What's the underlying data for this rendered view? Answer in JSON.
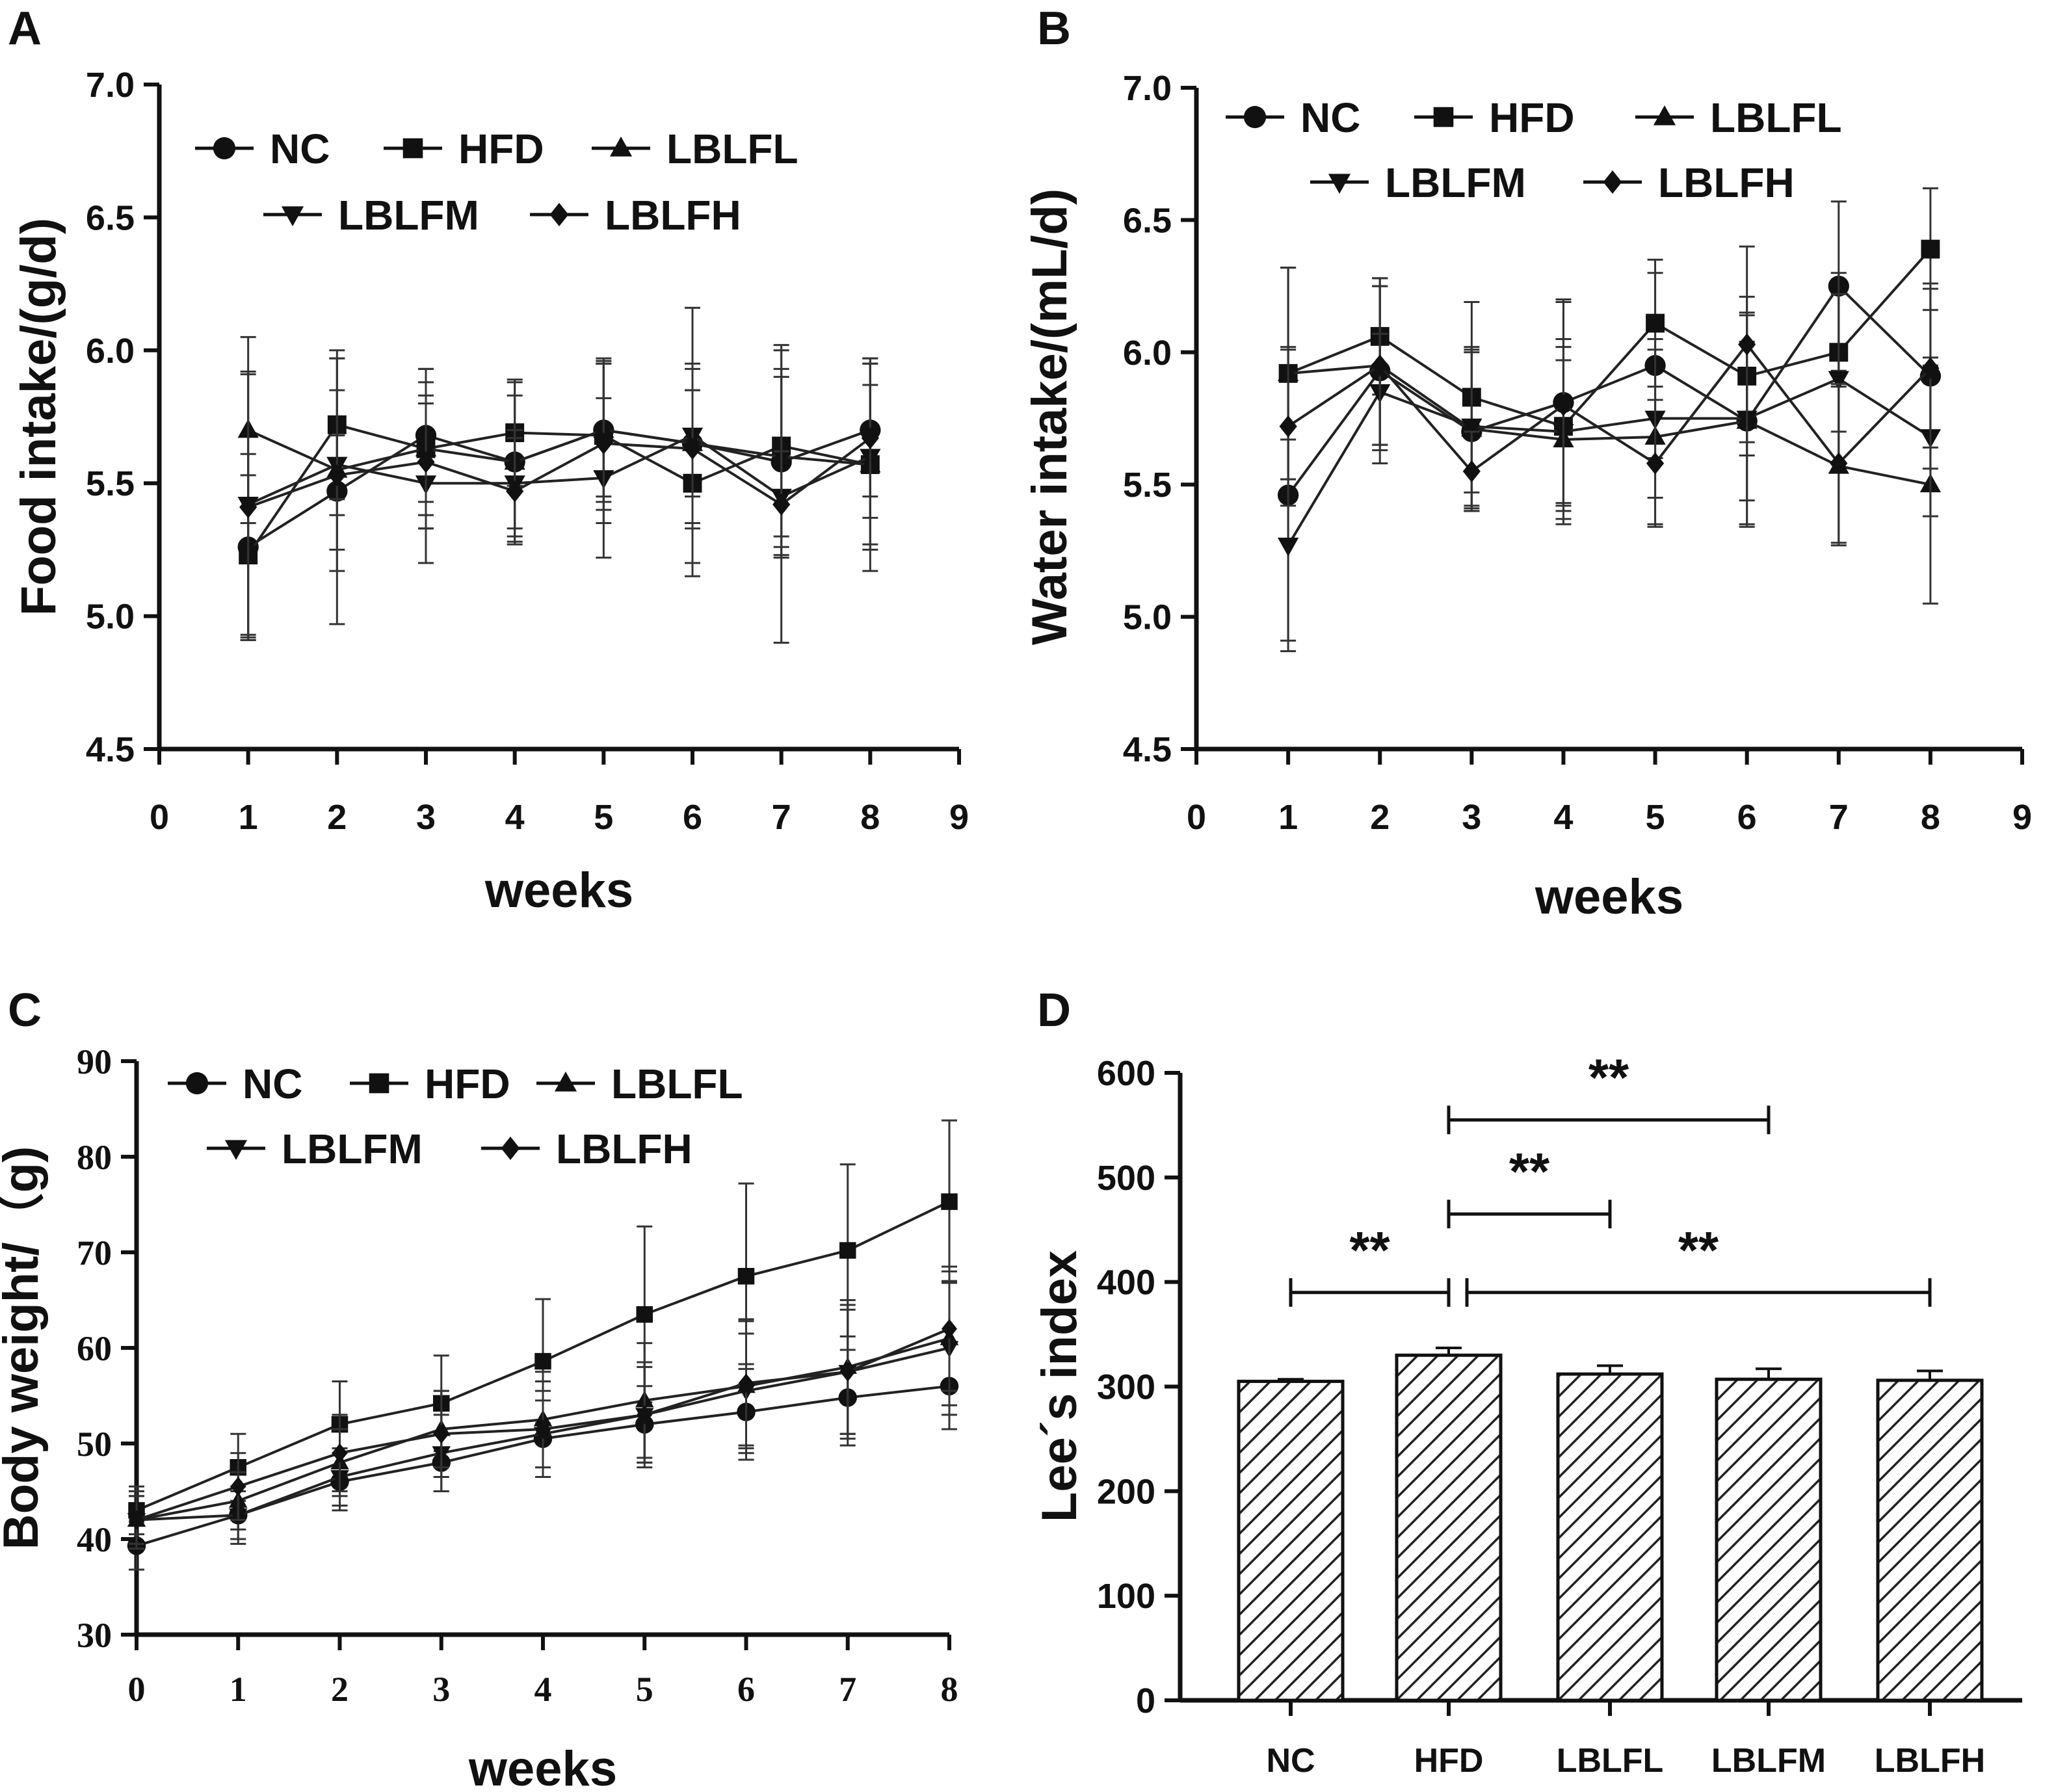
{
  "chart_data": [
    {
      "id": "A",
      "panel_label": "A",
      "type": "line",
      "xlabel": "weeks",
      "ylabel": "Food intake/(g/d)",
      "xlim": [
        0,
        9
      ],
      "ylim": [
        4.5,
        7.0
      ],
      "xticks": [
        0,
        1,
        2,
        3,
        4,
        5,
        6,
        7,
        8,
        9
      ],
      "yticks": [
        "4.5",
        "5.0",
        "5.5",
        "6.0",
        "6.5",
        "7.0"
      ],
      "x": [
        1,
        2,
        3,
        4,
        5,
        6,
        7,
        8
      ],
      "legend_rows": [
        [
          "NC",
          "HFD",
          "LBLFL"
        ],
        [
          "LBLFM",
          "LBLFH"
        ]
      ],
      "series": [
        {
          "name": "NC",
          "marker": "circle",
          "values": [
            5.26,
            5.47,
            5.68,
            5.58,
            5.7,
            5.65,
            5.58,
            5.7
          ],
          "errors": [
            0.35,
            0.5,
            0.25,
            0.3,
            0.27,
            0.2,
            0.35,
            0.25
          ]
        },
        {
          "name": "HFD",
          "marker": "square",
          "values": [
            5.23,
            5.72,
            5.63,
            5.69,
            5.68,
            5.5,
            5.64,
            5.57
          ],
          "errors": [
            0.3,
            0.28,
            0.3,
            0.2,
            0.28,
            0.35,
            0.38,
            0.4
          ]
        },
        {
          "name": "LBLFL",
          "marker": "triangle-up",
          "values": [
            5.7,
            5.55,
            5.63,
            5.58,
            5.7,
            5.65,
            5.6,
            5.57
          ],
          "errors": [
            0.35,
            0.3,
            0.25,
            0.25,
            0.25,
            0.3,
            0.3,
            0.3
          ]
        },
        {
          "name": "LBLFM",
          "marker": "triangle-down",
          "values": [
            5.42,
            5.57,
            5.5,
            5.5,
            5.52,
            5.68,
            5.45,
            5.6
          ],
          "errors": [
            0.5,
            0.4,
            0.3,
            0.2,
            0.3,
            0.48,
            0.55,
            0.35
          ]
        },
        {
          "name": "LBLFH",
          "marker": "diamond",
          "values": [
            5.41,
            5.53,
            5.58,
            5.47,
            5.65,
            5.63,
            5.42,
            5.67
          ],
          "errors": [
            0.5,
            0.15,
            0.25,
            0.2,
            0.3,
            0.3,
            0.2,
            0.3
          ]
        }
      ]
    },
    {
      "id": "B",
      "panel_label": "B",
      "type": "line",
      "xlabel": "weeks",
      "ylabel": "Water intake/(mL/d)",
      "xlim": [
        0,
        9
      ],
      "ylim": [
        4.5,
        7.0
      ],
      "xticks": [
        0,
        1,
        2,
        3,
        4,
        5,
        6,
        7,
        8,
        9
      ],
      "yticks": [
        "4.5",
        "5.0",
        "5.5",
        "6.0",
        "6.5",
        "7.0"
      ],
      "x": [
        1,
        2,
        3,
        4,
        5,
        6,
        7,
        8
      ],
      "legend_rows": [
        [
          "NC",
          "HFD",
          "LBLFL"
        ],
        [
          "LBLFM",
          "LBLFH"
        ]
      ],
      "series": [
        {
          "name": "NC",
          "marker": "circle",
          "values": [
            5.46,
            5.93,
            5.7,
            5.81,
            5.95,
            5.74,
            6.25,
            5.91
          ],
          "errors": [
            0.55,
            0.35,
            0.3,
            0.38,
            0.35,
            0.4,
            0.32,
            0.35
          ]
        },
        {
          "name": "HFD",
          "marker": "square",
          "values": [
            5.92,
            6.06,
            5.83,
            5.72,
            6.11,
            5.91,
            6.0,
            6.39
          ],
          "errors": [
            0.4,
            0.22,
            0.36,
            0.3,
            0.24,
            0.3,
            0.3,
            0.23
          ]
        },
        {
          "name": "LBLFL",
          "marker": "triangle-up",
          "values": [
            5.92,
            5.95,
            5.71,
            5.67,
            5.68,
            5.74,
            5.57,
            5.5
          ],
          "errors": [
            0.4,
            0.3,
            0.3,
            0.3,
            0.33,
            0.3,
            0.3,
            0.45
          ]
        },
        {
          "name": "LBLFM",
          "marker": "triangle-down",
          "values": [
            5.27,
            5.85,
            5.72,
            5.7,
            5.75,
            5.75,
            5.9,
            5.68
          ],
          "errors": [
            0.4,
            0.22,
            0.3,
            0.35,
            0.3,
            0.4,
            0.32,
            0.3
          ]
        },
        {
          "name": "LBLFH",
          "marker": "diamond",
          "values": [
            5.72,
            5.95,
            5.55,
            5.8,
            5.58,
            6.03,
            5.58,
            5.94
          ],
          "errors": [
            0.3,
            0.3,
            0.15,
            0.4,
            0.24,
            0.37,
            0.3,
            0.3
          ]
        }
      ]
    },
    {
      "id": "C",
      "panel_label": "C",
      "type": "line",
      "xlabel": "weeks",
      "ylabel": "Body weight/（g)",
      "xlim": [
        0,
        8
      ],
      "ylim": [
        30,
        90
      ],
      "xticks": [
        0,
        1,
        2,
        3,
        4,
        5,
        6,
        7,
        8
      ],
      "yticks": [
        "30",
        "40",
        "50",
        "60",
        "70",
        "80",
        "90"
      ],
      "x": [
        0,
        1,
        2,
        3,
        4,
        5,
        6,
        7,
        8
      ],
      "legend_rows": [
        [
          "NC",
          "HFD",
          "LBLFL"
        ],
        [
          "LBLFM",
          "LBLFH"
        ]
      ],
      "series": [
        {
          "name": "NC",
          "marker": "circle",
          "values": [
            39.3,
            42.5,
            46.0,
            48.0,
            50.5,
            52.0,
            53.3,
            54.8,
            56.0
          ],
          "errors": [
            2.5,
            2.5,
            3.0,
            3.0,
            4.0,
            4.0,
            5.0,
            5.0,
            4.5
          ]
        },
        {
          "name": "HFD",
          "marker": "square",
          "values": [
            43.0,
            47.5,
            52.0,
            54.2,
            58.6,
            63.5,
            67.5,
            70.2,
            75.3
          ],
          "errors": [
            2.5,
            3.5,
            4.5,
            5.0,
            6.5,
            9.2,
            9.7,
            9.0,
            8.5
          ]
        },
        {
          "name": "LBLFL",
          "marker": "triangle-up",
          "values": [
            42.0,
            44.0,
            48.0,
            51.5,
            52.5,
            54.5,
            56.0,
            58.0,
            61.0
          ],
          "errors": [
            2.5,
            3.0,
            3.5,
            4.0,
            5.0,
            6.0,
            7.0,
            7.0,
            7.0
          ]
        },
        {
          "name": "LBLFM",
          "marker": "triangle-down",
          "values": [
            42.0,
            42.5,
            46.5,
            49.0,
            51.0,
            53.0,
            55.5,
            57.5,
            60.0
          ],
          "errors": [
            2.5,
            3.0,
            3.0,
            4.0,
            4.5,
            5.0,
            6.0,
            6.5,
            7.0
          ]
        },
        {
          "name": "LBLFH",
          "marker": "diamond",
          "values": [
            42.0,
            45.5,
            49.0,
            51.0,
            51.5,
            53.0,
            56.3,
            57.5,
            62.0
          ],
          "errors": [
            3.0,
            3.5,
            4.0,
            4.5,
            5.0,
            5.5,
            6.5,
            7.0,
            6.5
          ]
        }
      ]
    },
    {
      "id": "D",
      "panel_label": "D",
      "type": "bar",
      "xlabel": "",
      "ylabel": "Lee´s index",
      "ylim": [
        0,
        600
      ],
      "yticks": [
        "0",
        "100",
        "200",
        "300",
        "400",
        "500",
        "600"
      ],
      "categories": [
        "NC",
        "HFD",
        "LBLFL",
        "LBLFM",
        "LBLFH"
      ],
      "values": [
        305,
        330,
        312,
        307,
        306
      ],
      "errors": [
        2,
        7,
        8,
        10,
        9
      ],
      "significance": [
        {
          "from": "NC",
          "to": "HFD",
          "level": 390,
          "label": "**"
        },
        {
          "from": "HFD",
          "to": "LBLFL",
          "level": 465,
          "label": "**"
        },
        {
          "from": "HFD",
          "to": "LBLFM",
          "level": 555,
          "label": "**"
        },
        {
          "from": "HFD",
          "to": "LBLFH",
          "level": 390,
          "label": "**"
        }
      ]
    }
  ]
}
